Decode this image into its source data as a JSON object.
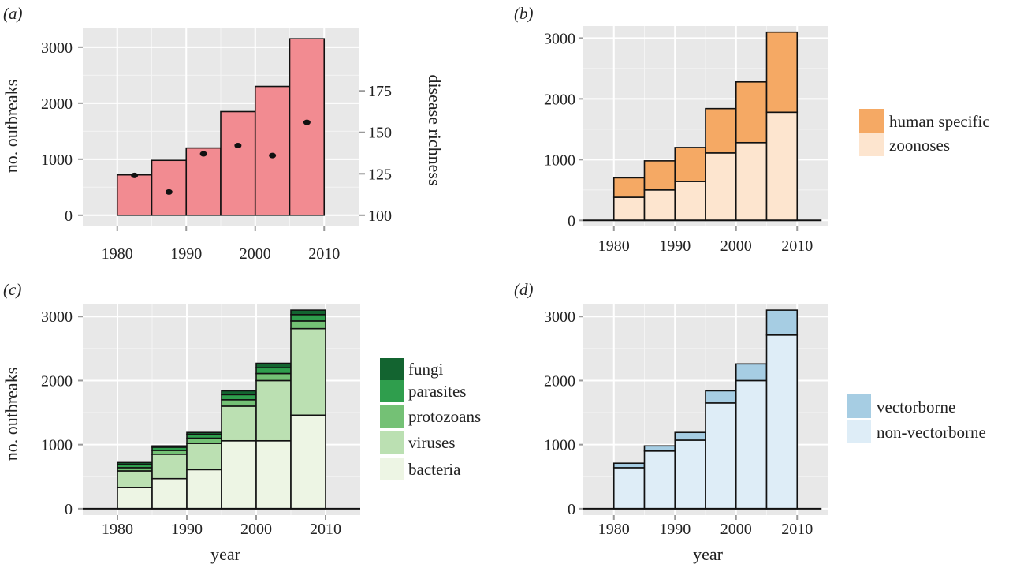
{
  "chart_data": [
    {
      "panel": "(a)",
      "type": "bar",
      "categories": [
        "1980–1985",
        "1985–1990",
        "1990–1995",
        "1995–2000",
        "2000–2005",
        "2005–2010"
      ],
      "bin_start": [
        1980,
        1985,
        1990,
        1995,
        2000,
        2005
      ],
      "bin_width": 5,
      "values": [
        720,
        980,
        1200,
        1850,
        2300,
        3150
      ],
      "bar_color": "#f28b91",
      "ylabel": "no. outbreaks",
      "ylim": [
        -200,
        3350
      ],
      "yticks": [
        0,
        1000,
        2000,
        3000
      ],
      "xlim": [
        1975,
        2015
      ],
      "xticks": [
        1980,
        1990,
        2000,
        2010
      ],
      "secondary_axis": {
        "label": "disease richness",
        "ticks": [
          100,
          125,
          150,
          175
        ],
        "points_x": [
          1982.5,
          1987.5,
          1992.5,
          1997.5,
          2002.5,
          2007.5
        ],
        "points_y": [
          124,
          114,
          137,
          142,
          136,
          156
        ],
        "point_color": "#111111",
        "map": {
          "a": 100,
          "b": 370,
          "c": 12.5
        }
      }
    },
    {
      "panel": "(b)",
      "type": "bar",
      "stacked": true,
      "bin_start": [
        1980,
        1985,
        1990,
        1995,
        2000,
        2005
      ],
      "bin_width": 5,
      "series": [
        {
          "name": "zoonoses",
          "color": "#fde5cf",
          "values": [
            380,
            500,
            640,
            1110,
            1280,
            1780
          ]
        },
        {
          "name": "human specific",
          "color": "#f5a964",
          "values": [
            320,
            480,
            560,
            730,
            1000,
            1320
          ]
        }
      ],
      "legend": [
        "human specific",
        "zoonoses"
      ],
      "ylim": [
        -100,
        3200
      ],
      "yticks": [
        0,
        1000,
        2000,
        3000
      ],
      "xlim": [
        1975,
        2015
      ],
      "xticks": [
        1980,
        1990,
        2000,
        2010
      ],
      "baseline": [
        1975,
        2014
      ]
    },
    {
      "panel": "(c)",
      "type": "bar",
      "stacked": true,
      "bin_start": [
        1980,
        1985,
        1990,
        1995,
        2000,
        2005
      ],
      "bin_width": 5,
      "series": [
        {
          "name": "bacteria",
          "color": "#edf5e4",
          "values": [
            330,
            470,
            610,
            1060,
            1060,
            1460
          ]
        },
        {
          "name": "viruses",
          "color": "#bbe0b2",
          "values": [
            260,
            380,
            410,
            540,
            940,
            1350
          ]
        },
        {
          "name": "protozoans",
          "color": "#74c175",
          "values": [
            50,
            60,
            80,
            100,
            110,
            120
          ]
        },
        {
          "name": "parasites",
          "color": "#2f9e4d",
          "values": [
            50,
            50,
            60,
            80,
            90,
            100
          ]
        },
        {
          "name": "fungi",
          "color": "#136430",
          "values": [
            30,
            20,
            30,
            60,
            70,
            70
          ]
        }
      ],
      "legend": [
        "fungi",
        "parasites",
        "protozoans",
        "viruses",
        "bacteria"
      ],
      "ylabel": "no. outbreaks",
      "xlabel": "year",
      "ylim": [
        -100,
        3200
      ],
      "yticks": [
        0,
        1000,
        2000,
        3000
      ],
      "xlim": [
        1975,
        2015
      ],
      "xticks": [
        1980,
        1990,
        2000,
        2010
      ],
      "baseline": [
        1975,
        2015
      ]
    },
    {
      "panel": "(d)",
      "type": "bar",
      "stacked": true,
      "bin_start": [
        1980,
        1985,
        1990,
        1995,
        2000,
        2005
      ],
      "bin_width": 5,
      "series": [
        {
          "name": "non-vectorborne",
          "color": "#deedf7",
          "values": [
            640,
            900,
            1070,
            1650,
            2000,
            2710
          ]
        },
        {
          "name": "vectorborne",
          "color": "#a6cde3",
          "values": [
            70,
            80,
            120,
            190,
            260,
            390
          ]
        }
      ],
      "legend": [
        "vectorborne",
        "non-vectorborne"
      ],
      "xlabel": "year",
      "ylim": [
        -100,
        3200
      ],
      "yticks": [
        0,
        1000,
        2000,
        3000
      ],
      "xlim": [
        1975,
        2015
      ],
      "xticks": [
        1980,
        1990,
        2000,
        2010
      ],
      "baseline": [
        1975,
        2014
      ]
    }
  ]
}
